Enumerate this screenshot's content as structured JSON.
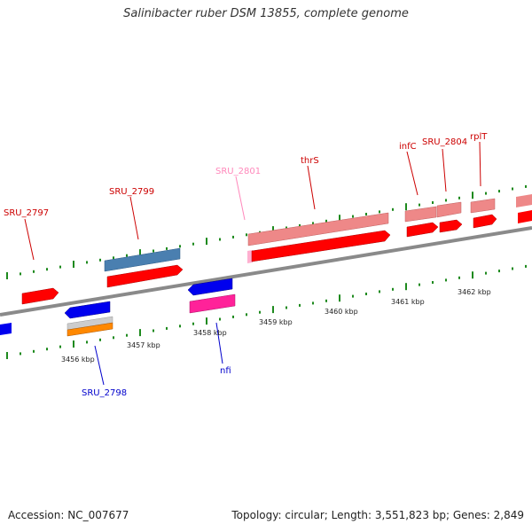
{
  "title": "Salinibacter ruber DSM 13855, complete genome",
  "footer": {
    "accession": "Accession: NC_007677",
    "summary": "Topology: circular; Length: 3,551,823 bp; Genes: 2,849"
  },
  "colors": {
    "backbone": "#8a8a8a",
    "tick": "#1e8a1e",
    "cds_forward": "#ff0000",
    "gene_forward": "#ee8888",
    "cds_reverse": "#0000ee",
    "misc_blue": "#4a7fb0",
    "gene_pink": "#ff2299",
    "pseudo_light_pink": "#ffb0d0",
    "grey_feature": "#cccccc",
    "orange_feature": "#ff8800",
    "label_red": "#cc0000",
    "label_blue": "#0000cc",
    "label_pink": "#ff88bb"
  },
  "scale_labels": [
    "3456 kbp",
    "3457 kbp",
    "3458 kbp",
    "3459 kbp",
    "3460 kbp",
    "3461 kbp",
    "3462 kbp"
  ],
  "gene_labels": [
    {
      "id": "sru2797",
      "text": "SRU_2797",
      "color": "#cc0000"
    },
    {
      "id": "sru2799",
      "text": "SRU_2799",
      "color": "#cc0000"
    },
    {
      "id": "sru2801",
      "text": "SRU_2801",
      "color": "#ff88bb"
    },
    {
      "id": "thrs",
      "text": "thrS",
      "color": "#cc0000"
    },
    {
      "id": "infc",
      "text": "infC",
      "color": "#cc0000"
    },
    {
      "id": "sru2804",
      "text": "SRU_2804",
      "color": "#cc0000"
    },
    {
      "id": "rplt",
      "text": "rplT",
      "color": "#cc0000"
    },
    {
      "id": "sru2798",
      "text": "SRU_2798",
      "color": "#0000cc"
    },
    {
      "id": "nfi",
      "text": "nfi",
      "color": "#0000cc"
    }
  ]
}
